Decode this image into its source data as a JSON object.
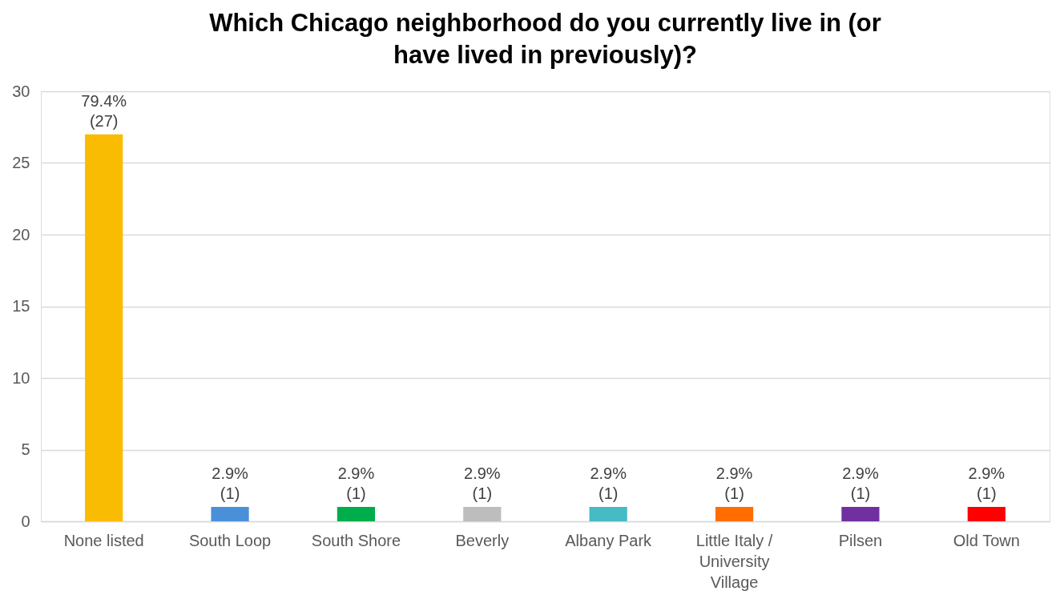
{
  "chart_data": {
    "type": "bar",
    "title": "Which Chicago neighborhood do you currently live in (or have lived in previously)?",
    "categories": [
      "None listed",
      "South Loop",
      "South Shore",
      "Beverly",
      "Albany Park",
      "Little Italy / University Village",
      "Pilsen",
      "Old Town"
    ],
    "values": [
      27,
      1,
      1,
      1,
      1,
      1,
      1,
      1
    ],
    "colors": [
      "#f9bc02",
      "#4a90d9",
      "#00ad4b",
      "#bdbdbd",
      "#46bbc4",
      "#ff6d00",
      "#7030a0",
      "#ff0000"
    ],
    "value_labels": [
      "79.4%\n(27)",
      "2.9%\n(1)",
      "2.9%\n(1)",
      "2.9%\n(1)",
      "2.9%\n(1)",
      "2.9%\n(1)",
      "2.9%\n(1)",
      "2.9%\n(1)"
    ],
    "ylim": [
      0,
      30
    ],
    "yticks": [
      0,
      5,
      10,
      15,
      20,
      25,
      30
    ],
    "grid": "y"
  }
}
